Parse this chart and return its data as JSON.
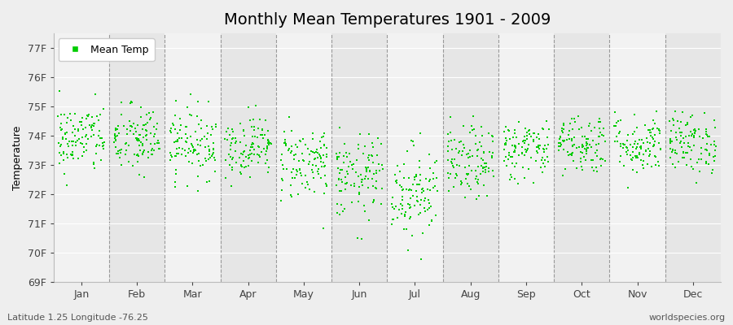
{
  "title": "Monthly Mean Temperatures 1901 - 2009",
  "ylabel": "Temperature",
  "xlabel_bottom_left": "Latitude 1.25 Longitude -76.25",
  "xlabel_bottom_right": "worldspecies.org",
  "months": [
    "Jan",
    "Feb",
    "Mar",
    "Apr",
    "May",
    "Jun",
    "Jul",
    "Aug",
    "Sep",
    "Oct",
    "Nov",
    "Dec"
  ],
  "ylim": [
    69,
    77.5
  ],
  "yticks": [
    69,
    70,
    71,
    72,
    73,
    74,
    75,
    76,
    77
  ],
  "ytick_labels": [
    "69F",
    "70F",
    "71F",
    "72F",
    "73F",
    "74F",
    "75F",
    "76F",
    "77F"
  ],
  "background_color": "#eeeeee",
  "band_color_light": "#f2f2f2",
  "band_color_dark": "#e6e6e6",
  "dot_color": "#00cc00",
  "dot_size": 2.5,
  "legend_label": "Mean Temp",
  "month_means": [
    73.9,
    73.85,
    73.75,
    73.65,
    73.1,
    72.55,
    72.1,
    73.05,
    73.55,
    73.75,
    73.7,
    73.75
  ],
  "month_stds": [
    0.6,
    0.6,
    0.6,
    0.52,
    0.65,
    0.72,
    0.8,
    0.62,
    0.52,
    0.52,
    0.52,
    0.52
  ],
  "seed": 42,
  "n_years": 109,
  "title_fontsize": 14,
  "axis_label_fontsize": 9,
  "tick_fontsize": 9,
  "dpi": 100
}
